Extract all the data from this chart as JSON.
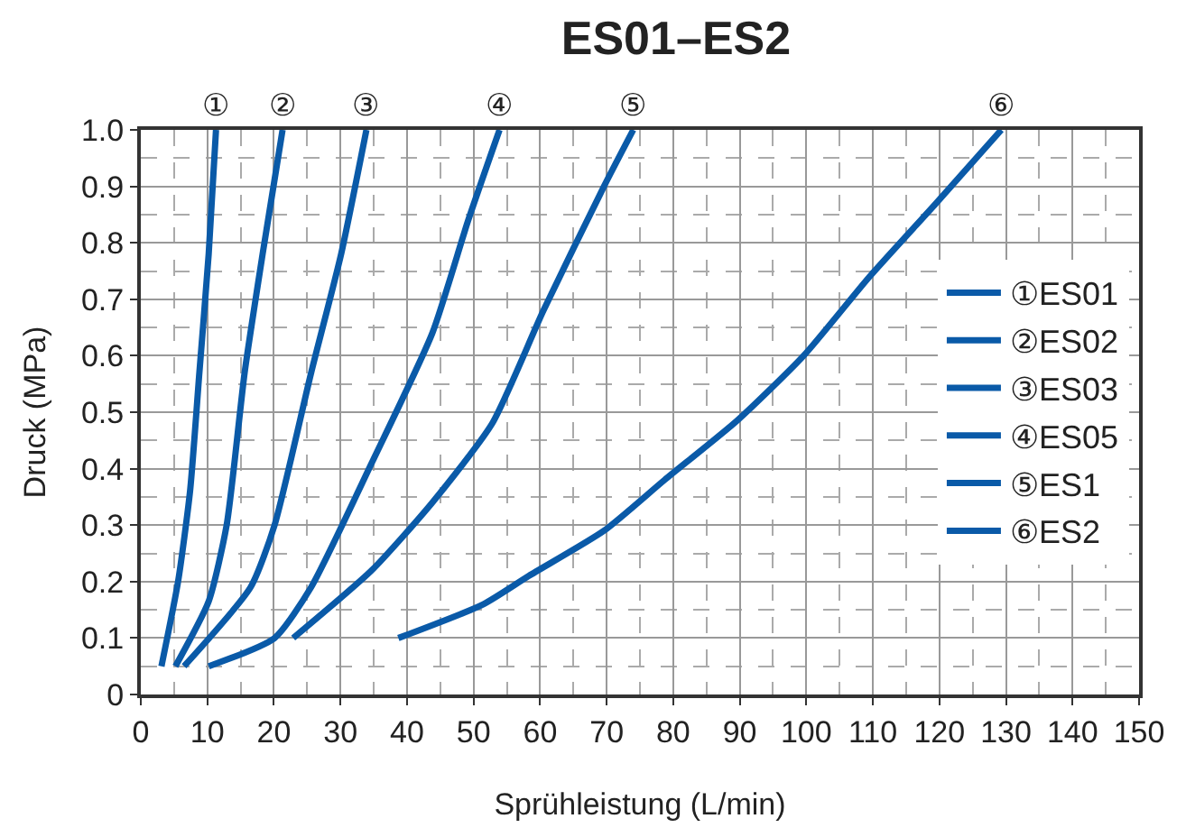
{
  "chart_data": {
    "type": "line",
    "title": "ES01–ES2",
    "xlabel": "Sprühleistung (L/min)",
    "ylabel": "Druck (MPa)",
    "xlim": [
      0,
      150
    ],
    "xticks": [
      0,
      10,
      20,
      30,
      40,
      50,
      60,
      70,
      80,
      90,
      100,
      110,
      120,
      130,
      140,
      150
    ],
    "ylim": [
      0,
      1.0
    ],
    "yticks": [
      {
        "value": 0,
        "label": "0"
      },
      0.1,
      0.2,
      0.3,
      0.4,
      0.5,
      0.6,
      0.7,
      0.8,
      0.9,
      {
        "value": 1.0,
        "label": "1.0"
      }
    ],
    "grid": true,
    "legend": "right",
    "marker": "none",
    "line_style": "solid",
    "annotations": [
      {
        "text": "①",
        "x": 11.3,
        "y": 1.0
      },
      {
        "text": "②",
        "x": 21.3,
        "y": 1.0
      },
      {
        "text": "③",
        "x": 33.9,
        "y": 1.0
      },
      {
        "text": "④",
        "x": 53.9,
        "y": 1.0
      },
      {
        "text": "⑤",
        "x": 74,
        "y": 1.0
      },
      {
        "text": "⑥",
        "x": 129.3,
        "y": 1.0
      }
    ],
    "series": [
      {
        "name": "①ES01",
        "color": "#0a5aa8",
        "x": [
          3.1,
          5.6,
          7.4,
          8.8,
          10.2,
          11.3
        ],
        "values": [
          0.05,
          0.2,
          0.36,
          0.57,
          0.78,
          1.0
        ]
      },
      {
        "name": "②ES02",
        "color": "#0a5aa8",
        "x": [
          5.2,
          10.2,
          12.9,
          15.6,
          18.3,
          21.3
        ],
        "values": [
          0.05,
          0.165,
          0.3,
          0.57,
          0.78,
          1.0
        ]
      },
      {
        "name": "③ES03",
        "color": "#0a5aa8",
        "x": [
          6.5,
          16.5,
          20.1,
          25.6,
          30.1,
          33.9
        ],
        "values": [
          0.05,
          0.19,
          0.3,
          0.57,
          0.78,
          1.0
        ]
      },
      {
        "name": "④ES05",
        "color": "#0a5aa8",
        "x": [
          10.2,
          20.1,
          25.6,
          34.7,
          43.8,
          49.2,
          53.9
        ],
        "values": [
          0.05,
          0.1,
          0.19,
          0.41,
          0.64,
          0.84,
          1.0
        ]
      },
      {
        "name": "⑤ES1",
        "color": "#0a5aa8",
        "x": [
          22.9,
          34.7,
          43.8,
          52.8,
          60.5,
          69.6,
          74
        ],
        "values": [
          0.1,
          0.22,
          0.34,
          0.48,
          0.68,
          0.9,
          1.0
        ]
      },
      {
        "name": "⑥ES2",
        "color": "#0a5aa8",
        "x": [
          38.7,
          51.5,
          58.3,
          69.6,
          78.7,
          89.6,
          99.6,
          109.5,
          119.5,
          129.3
        ],
        "values": [
          0.1,
          0.16,
          0.21,
          0.29,
          0.38,
          0.485,
          0.6,
          0.74,
          0.87,
          1.0
        ]
      }
    ]
  }
}
